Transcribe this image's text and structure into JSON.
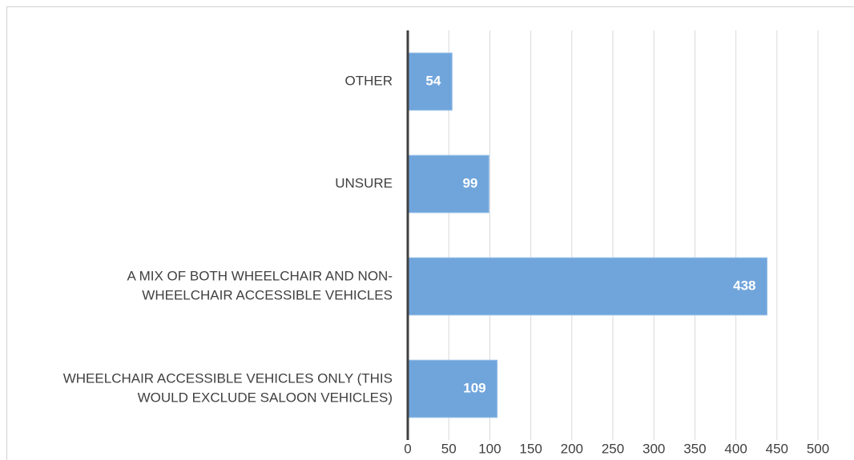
{
  "chart_data": {
    "type": "bar",
    "orientation": "horizontal",
    "categories": [
      [
        "OTHER"
      ],
      [
        "UNSURE"
      ],
      [
        "A MIX OF BOTH WHEELCHAIR AND NON-",
        "WHEELCHAIR ACCESSIBLE VEHICLES"
      ],
      [
        "WHEELCHAIR ACCESSIBLE VEHICLES ONLY (THIS",
        "WOULD EXCLUDE SALOON VEHICLES)"
      ]
    ],
    "values": [
      54,
      99,
      438,
      109
    ],
    "color": "#70a5dc",
    "xlim": [
      0,
      500
    ],
    "xticks": [
      0,
      50,
      100,
      150,
      200,
      250,
      300,
      350,
      400,
      450,
      500
    ],
    "grid": true
  }
}
